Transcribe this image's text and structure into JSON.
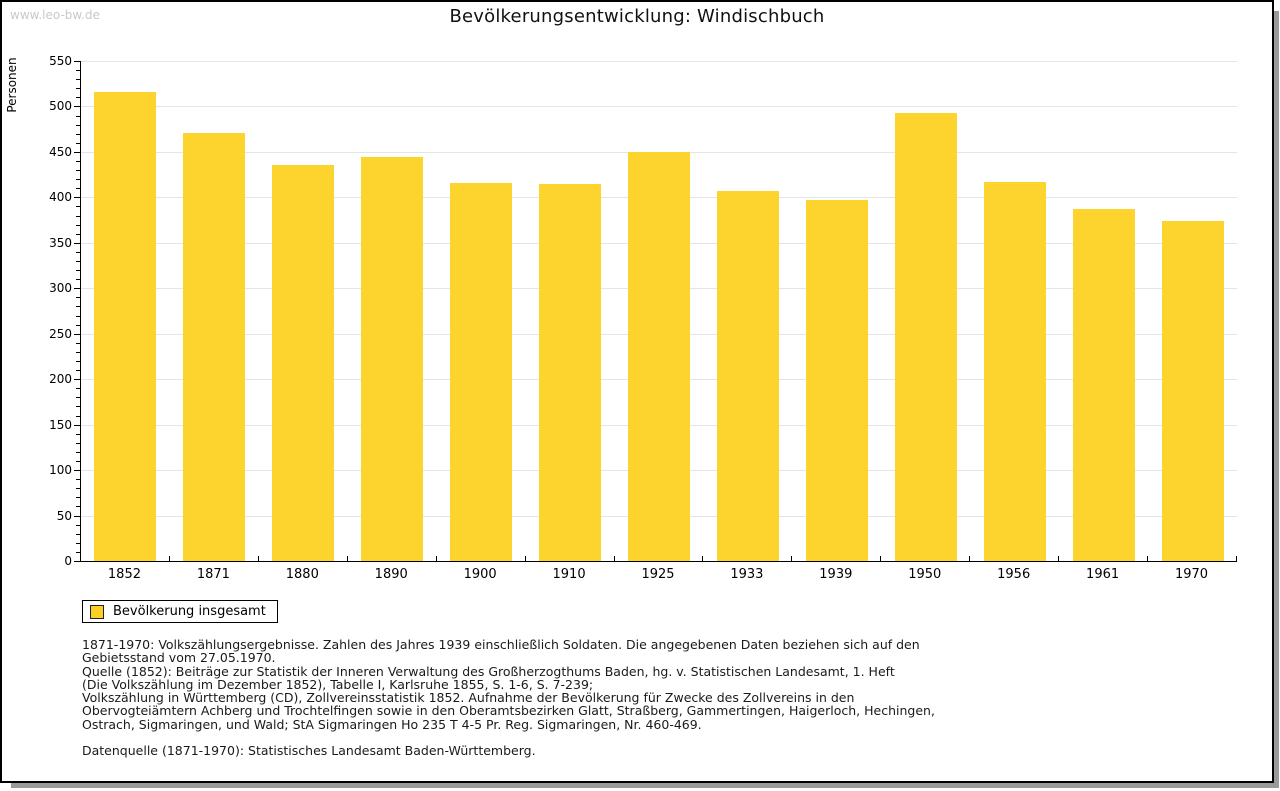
{
  "watermark": "www.leo-bw.de",
  "header": {
    "title": "Bevölkerungsentwicklung: Windischbuch"
  },
  "chart_data": {
    "type": "bar",
    "title": "Bevölkerungsentwicklung: Windischbuch",
    "categories": [
      "1852",
      "1871",
      "1880",
      "1890",
      "1900",
      "1910",
      "1925",
      "1933",
      "1939",
      "1950",
      "1956",
      "1961",
      "1970"
    ],
    "values": [
      516,
      471,
      436,
      444,
      416,
      415,
      450,
      407,
      397,
      493,
      417,
      387,
      374
    ],
    "series_name": "Bevölkerung insgesamt",
    "xlabel": "",
    "ylabel": "Personen",
    "ylim": [
      0,
      550
    ],
    "yticks": [
      0,
      50,
      100,
      150,
      200,
      250,
      300,
      350,
      400,
      450,
      500,
      550
    ],
    "y_minor_step": 10,
    "grid": "horizontal-major",
    "legend_position": "bottom-left"
  },
  "legend": {
    "label": "Bevölkerung insgesamt"
  },
  "colors": {
    "bar": "#FDD42E",
    "swatch": "#FBCF23",
    "grid": "#E5E5E5",
    "axis": "#000000",
    "watermark": "#C9C9C9",
    "shadow": "#9A9A9A"
  },
  "footnote": {
    "lines": [
      "1871-1970: Volkszählungsergebnisse. Zahlen des Jahres 1939 einschließlich Soldaten. Die angegebenen Daten beziehen sich auf den",
      "Gebietsstand vom 27.05.1970.",
      "Quelle (1852): Beiträge zur Statistik der Inneren Verwaltung des Großherzogthums Baden, hg. v. Statistischen Landesamt, 1. Heft",
      "(Die Volkszählung im Dezember 1852), Tabelle I, Karlsruhe 1855, S. 1-6, S. 7-239;",
      "Volkszählung in Württemberg (CD), Zollvereinsstatistik 1852. Aufnahme der Bevölkerung für Zwecke des Zollvereins in den",
      "Obervogteiämtern Achberg und Trochtelfingen sowie in den Oberamtsbezirken Glatt, Straßberg, Gammertingen, Haigerloch, Hechingen,",
      "Ostrach, Sigmaringen, und Wald; StA Sigmaringen Ho 235 T 4-5 Pr. Reg. Sigmaringen, Nr. 460-469."
    ],
    "datasource": "Datenquelle (1871-1970): Statistisches Landesamt Baden-Württemberg."
  }
}
